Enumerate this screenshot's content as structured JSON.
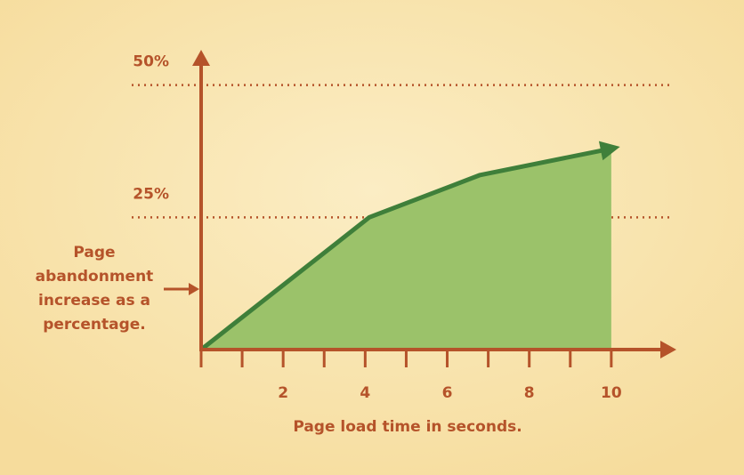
{
  "chart_data": {
    "type": "area",
    "xlabel": "Page load time in seconds.",
    "ylabel_lines": [
      "Page",
      "abandonment",
      "increase as a",
      "percentage."
    ],
    "x": [
      0,
      4.1,
      6.8,
      10
    ],
    "series": [
      {
        "color": "#9bc26a",
        "values": [
          0,
          25,
          33,
          38
        ]
      }
    ],
    "line_color": "#3f7f3a",
    "axis_color": "#b5532a",
    "xlim": [
      0,
      11.5
    ],
    "ylim": [
      0,
      56
    ],
    "xticks": [
      2,
      4,
      6,
      8,
      10
    ],
    "xminor": [
      1,
      3,
      5,
      7,
      9
    ],
    "yticks": [
      {
        "value": 25,
        "label": "25%"
      },
      {
        "value": 50,
        "label": "50%"
      }
    ],
    "grid": true
  }
}
